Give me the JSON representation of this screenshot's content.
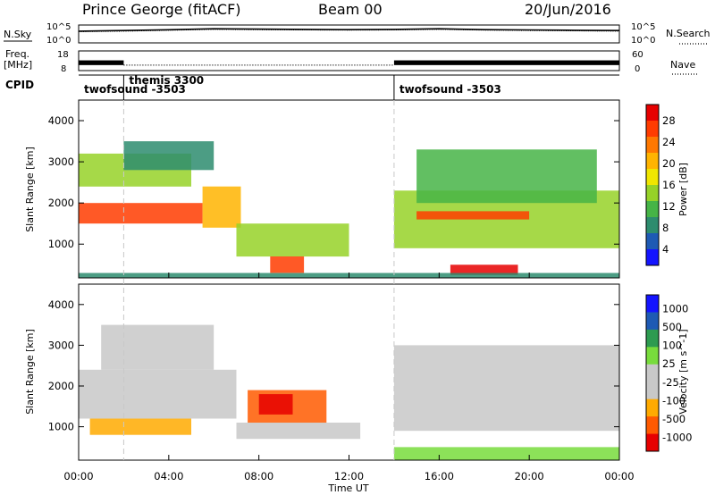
{
  "header": {
    "site": "Prince George (fitACF)",
    "beam": "Beam 00",
    "date": "20/Jun/2016"
  },
  "left_labels": {
    "nsky": "N.Sky",
    "freq": "Freq.",
    "freq_unit": "[MHz]",
    "cpid": "CPID"
  },
  "right_labels": {
    "nsearch": "N.Search",
    "nave": "Nave"
  },
  "cpid_segments": [
    {
      "label": "twofsound -3503",
      "start": 0.0
    },
    {
      "label": "themis 3300",
      "start": 2.0
    },
    {
      "label": "twofsound -3503",
      "start": 14.0
    }
  ],
  "colors": {
    "power_scale": [
      "#1414ff",
      "#1e5ab4",
      "#2d8c6e",
      "#46b446",
      "#96d228",
      "#f0e600",
      "#ffb400",
      "#ff7800",
      "#ff3c00",
      "#e60000"
    ],
    "velocity_scale": [
      "#e60000",
      "#ff5a00",
      "#ffaa00",
      "#c8c8c8",
      "#c8c8c8",
      "#78dc3c",
      "#2d9b50",
      "#1e5ab4",
      "#1414ff"
    ]
  },
  "chart_data": [
    {
      "type": "line",
      "name": "noise-panel",
      "left_label": "N.Sky",
      "right_label": "N.Search",
      "left_ticks": [
        "10^5",
        "10^0"
      ],
      "right_ticks": [
        "10^5",
        "10^0"
      ],
      "x": [
        0,
        2,
        4,
        6,
        8,
        10,
        12,
        14,
        16,
        18,
        20,
        22,
        24
      ],
      "series": [
        {
          "name": "N.Sky",
          "values": [
            3000,
            5000,
            9000,
            20000,
            15000,
            12000,
            10000,
            12000,
            20000,
            10000,
            8000,
            6000,
            5000
          ]
        },
        {
          "name": "N.Search",
          "values": [
            2000,
            3000,
            6000,
            12000,
            9000,
            8000,
            7000,
            8000,
            12000,
            7000,
            5000,
            4000,
            3000
          ]
        }
      ]
    },
    {
      "type": "line",
      "name": "frequency-panel",
      "left_label": "Freq. [MHz]",
      "right_label": "Nave",
      "left_ticks": [
        "18",
        "8"
      ],
      "right_ticks": [
        "60",
        "0"
      ],
      "ylim_left": [
        8,
        18
      ],
      "ylim_right": [
        0,
        60
      ],
      "segments": [
        {
          "start": 0.0,
          "end": 2.0,
          "freq_range": [
            10.8,
            13.2
          ],
          "nave": 25
        },
        {
          "start": 2.0,
          "end": 14.0,
          "freq_range": [
            10.8,
            10.8
          ],
          "nave": 20
        },
        {
          "start": 14.0,
          "end": 24.0,
          "freq_range": [
            10.8,
            13.2
          ],
          "nave": 25
        }
      ]
    },
    {
      "type": "heatmap",
      "name": "power-panel",
      "ylabel": "Slant Range [km]",
      "colorbar_label": "Power [dB]",
      "colorbar_ticks": [
        "28",
        "24",
        "20",
        "16",
        "12",
        "8",
        "4"
      ],
      "yticks": [
        "4000",
        "3000",
        "2000",
        "1000"
      ],
      "ylim": [
        180,
        4500
      ],
      "xlim": [
        0,
        24
      ],
      "clim": [
        0,
        30
      ],
      "regions": [
        {
          "t0": 0.0,
          "t1": 5.5,
          "r0": 1500,
          "r1": 2000,
          "v": 24
        },
        {
          "t0": 5.5,
          "t1": 7.2,
          "r0": 1400,
          "r1": 2400,
          "v": 18
        },
        {
          "t0": 0.0,
          "t1": 5.0,
          "r0": 2400,
          "r1": 3200,
          "v": 12
        },
        {
          "t0": 2.0,
          "t1": 6.0,
          "r0": 2800,
          "r1": 3500,
          "v": 8
        },
        {
          "t0": 7.0,
          "t1": 12.0,
          "r0": 700,
          "r1": 1500,
          "v": 14
        },
        {
          "t0": 8.5,
          "t1": 10.0,
          "r0": 300,
          "r1": 700,
          "v": 24
        },
        {
          "t0": 14.0,
          "t1": 24.0,
          "r0": 900,
          "r1": 2300,
          "v": 12
        },
        {
          "t0": 15.0,
          "t1": 20.0,
          "r0": 1600,
          "r1": 1800,
          "v": 24
        },
        {
          "t0": 16.5,
          "t1": 19.5,
          "r0": 250,
          "r1": 500,
          "v": 28
        },
        {
          "t0": 15.0,
          "t1": 23.0,
          "r0": 2000,
          "r1": 3300,
          "v": 10
        },
        {
          "t0": 0.0,
          "t1": 24.0,
          "r0": 180,
          "r1": 300,
          "v": 6
        }
      ]
    },
    {
      "type": "heatmap",
      "name": "velocity-panel",
      "ylabel": "Slant Range [km]",
      "xlabel": "Time UT",
      "colorbar_label": "Velocity [m s^-1]",
      "colorbar_ticks": [
        "1000",
        "500",
        "100",
        "25",
        "-25",
        "-100",
        "-500",
        "-1000"
      ],
      "xticks": [
        "00:00",
        "04:00",
        "08:00",
        "12:00",
        "16:00",
        "20:00",
        "00:00"
      ],
      "yticks": [
        "4000",
        "3000",
        "2000",
        "1000"
      ],
      "ylim": [
        180,
        4500
      ],
      "xlim": [
        0,
        24
      ],
      "clim": [
        -1200,
        1200
      ],
      "regions": [
        {
          "t0": 0.0,
          "t1": 7.0,
          "r0": 1200,
          "r1": 2400,
          "v": 0
        },
        {
          "t0": 1.0,
          "t1": 6.0,
          "r0": 2400,
          "r1": 3500,
          "v": 0
        },
        {
          "t0": 0.5,
          "t1": 5.0,
          "r0": 800,
          "r1": 1200,
          "v": -200
        },
        {
          "t0": 7.5,
          "t1": 11.0,
          "r0": 1100,
          "r1": 1900,
          "v": -500
        },
        {
          "t0": 8.0,
          "t1": 9.5,
          "r0": 1300,
          "r1": 1800,
          "v": -900
        },
        {
          "t0": 7.0,
          "t1": 12.5,
          "r0": 700,
          "r1": 1100,
          "v": 0
        },
        {
          "t0": 14.0,
          "t1": 24.0,
          "r0": 900,
          "r1": 3000,
          "v": 0
        },
        {
          "t0": 14.0,
          "t1": 24.0,
          "r0": 180,
          "r1": 500,
          "v": 60
        }
      ]
    }
  ]
}
